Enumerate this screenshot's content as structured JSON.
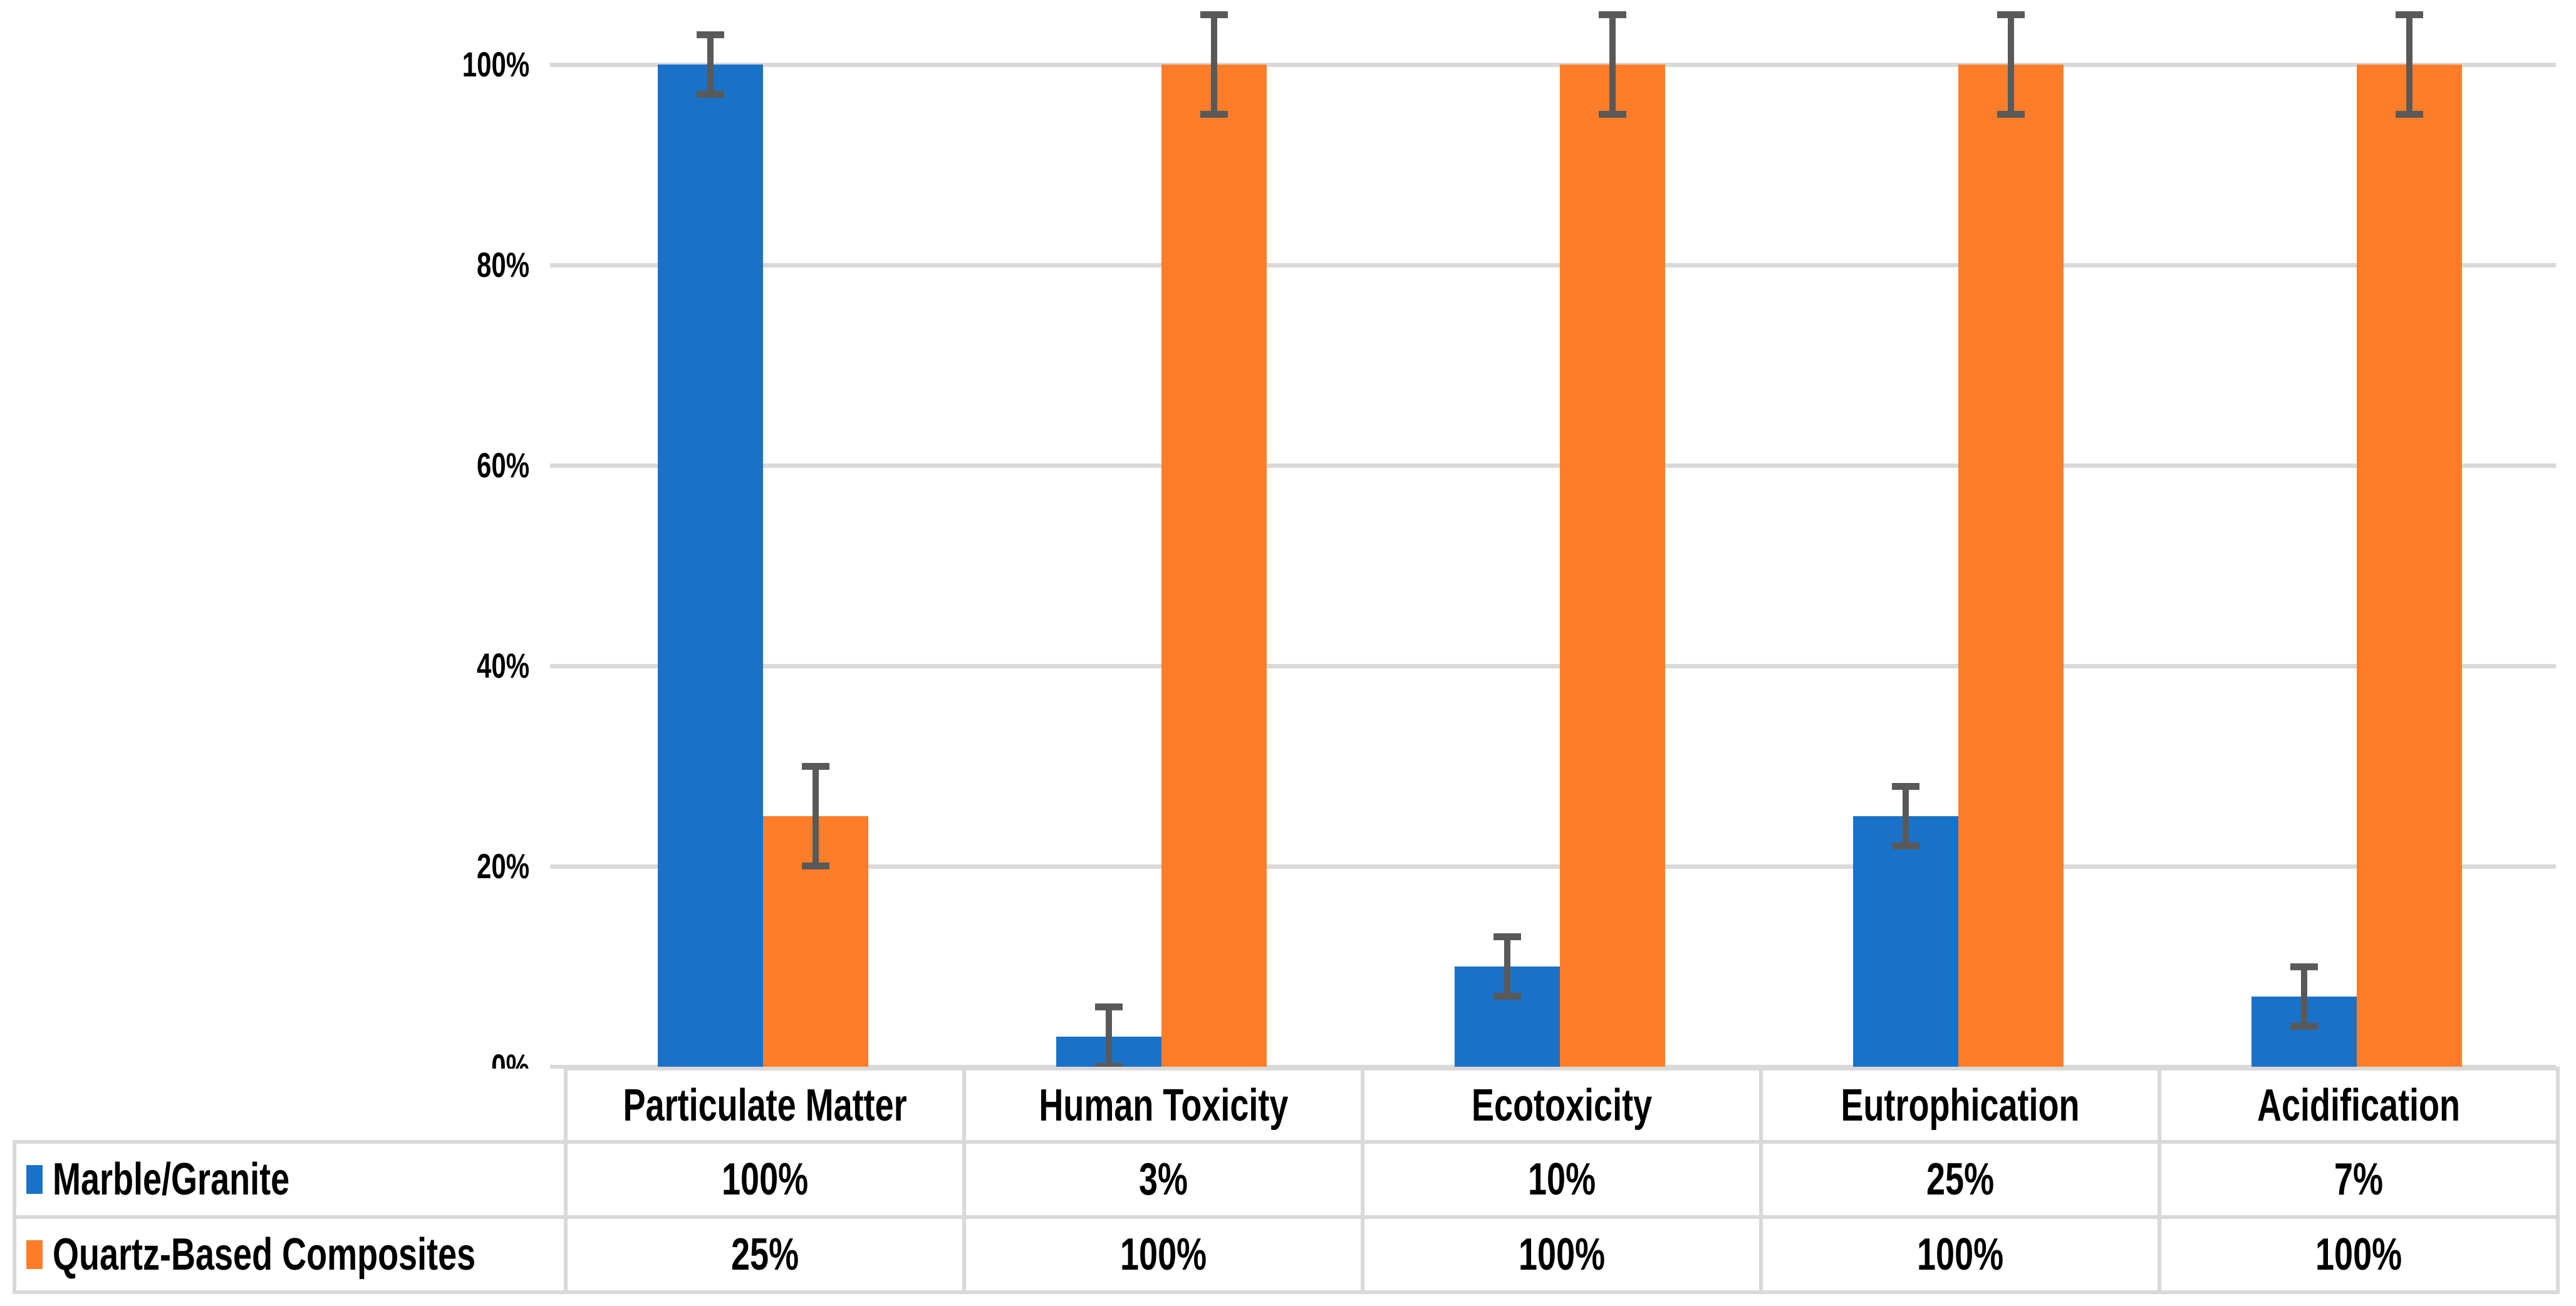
{
  "chart_data": {
    "type": "bar",
    "title": "",
    "xlabel": "",
    "ylabel": "",
    "categories": [
      "Particulate Matter",
      "Human Toxicity",
      "Ecotoxicity",
      "Eutrophication",
      "Acidification"
    ],
    "series": [
      {
        "name": "Marble/Granite",
        "color": "#1A72C8",
        "values": [
          100,
          3,
          10,
          25,
          7
        ],
        "value_labels": [
          "100%",
          "3%",
          "10%",
          "25%",
          "7%"
        ],
        "error_plus": [
          3,
          3,
          3,
          3,
          3
        ],
        "error_minus": [
          3,
          3,
          3,
          3,
          3
        ]
      },
      {
        "name": "Quartz-Based Composites",
        "color": "#FF7D28",
        "values": [
          25,
          100,
          100,
          100,
          100
        ],
        "value_labels": [
          "25%",
          "100%",
          "100%",
          "100%",
          "100%"
        ],
        "error_plus": [
          5,
          5,
          5,
          5,
          5
        ],
        "error_minus": [
          5,
          5,
          5,
          5,
          5
        ]
      }
    ],
    "yticks": [
      0,
      20,
      40,
      60,
      80,
      100
    ],
    "ytick_labels": [
      "0%",
      "20%",
      "40%",
      "60%",
      "80%",
      "100%"
    ],
    "ylim": [
      0,
      106.5
    ],
    "grid": "horizontal",
    "gridline_color": "#D9D9D9",
    "error_bar_color": "#595959",
    "data_table_shown": true,
    "legend_position": "data-table-left"
  }
}
